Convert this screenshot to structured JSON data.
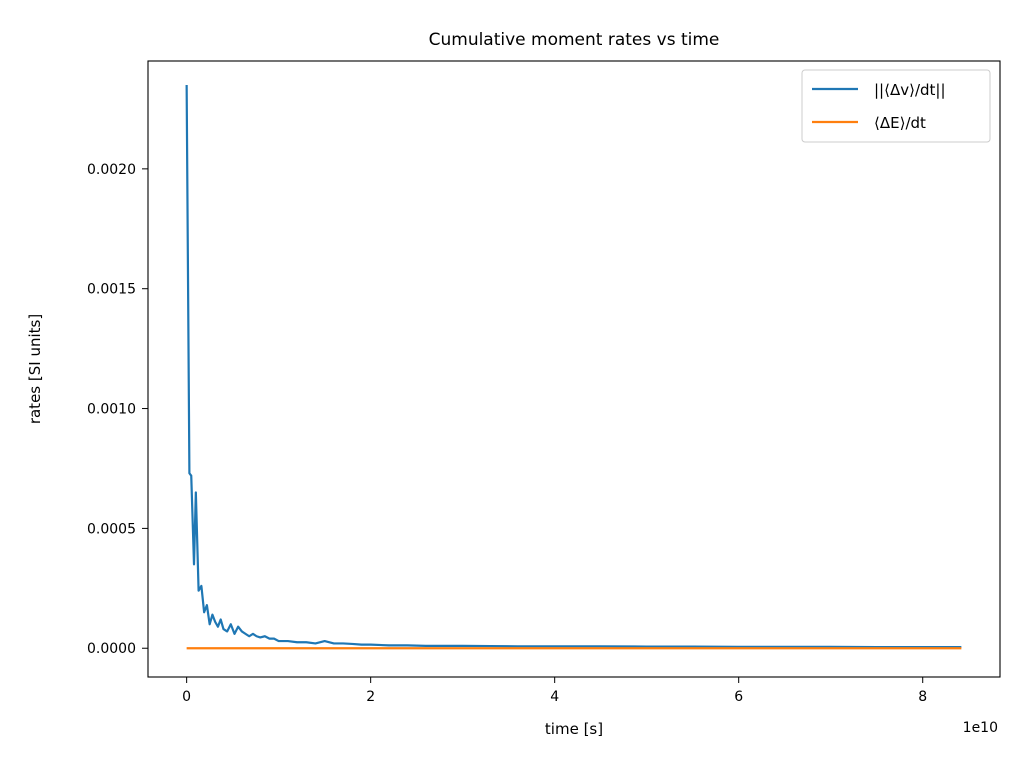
{
  "chart_data": {
    "type": "line",
    "title": "Cumulative moment rates vs time",
    "xlabel": "time [s]",
    "ylabel": "rates [SI units]",
    "x_offset_label": "1e10",
    "xlim": [
      -0.42,
      8.84
    ],
    "ylim": [
      -0.00012,
      0.00245
    ],
    "x_ticks": [
      0,
      2,
      4,
      6,
      8
    ],
    "x_tick_labels": [
      "0",
      "2",
      "4",
      "6",
      "8"
    ],
    "y_ticks": [
      0.0,
      0.0005,
      0.001,
      0.0015,
      0.002
    ],
    "y_tick_labels": [
      "0.0000",
      "0.0005",
      "0.0010",
      "0.0015",
      "0.0020"
    ],
    "grid": false,
    "legend_position": "top-right",
    "series": [
      {
        "name": "||⟨Δv⟩/dt||",
        "color": "#1f77b4",
        "x": [
          0.0,
          0.03,
          0.05,
          0.08,
          0.1,
          0.13,
          0.16,
          0.19,
          0.22,
          0.25,
          0.28,
          0.31,
          0.34,
          0.37,
          0.4,
          0.44,
          0.48,
          0.52,
          0.56,
          0.6,
          0.64,
          0.68,
          0.72,
          0.76,
          0.8,
          0.85,
          0.9,
          0.95,
          1.0,
          1.1,
          1.2,
          1.3,
          1.4,
          1.5,
          1.6,
          1.7,
          1.8,
          1.9,
          2.0,
          2.2,
          2.4,
          2.6,
          2.8,
          3.0,
          3.3,
          3.6,
          4.0,
          4.5,
          5.0,
          5.5,
          6.0,
          6.5,
          7.0,
          7.5,
          8.0,
          8.42
        ],
        "values": [
          0.00235,
          0.00073,
          0.00072,
          0.00035,
          0.00065,
          0.00024,
          0.00026,
          0.00015,
          0.00018,
          0.0001,
          0.00014,
          0.00011,
          9e-05,
          0.00012,
          8e-05,
          7e-05,
          0.0001,
          6e-05,
          9e-05,
          7e-05,
          6e-05,
          5e-05,
          6e-05,
          5e-05,
          4.5e-05,
          5e-05,
          4e-05,
          4e-05,
          3e-05,
          3e-05,
          2.5e-05,
          2.5e-05,
          2e-05,
          3e-05,
          2e-05,
          2e-05,
          1.8e-05,
          1.5e-05,
          1.5e-05,
          1.2e-05,
          1.2e-05,
          1e-05,
          1e-05,
          1e-05,
          9e-06,
          8e-06,
          8e-06,
          8e-06,
          7e-06,
          7e-06,
          6e-06,
          6e-06,
          6e-06,
          5e-06,
          5e-06,
          5e-06
        ]
      },
      {
        "name": "⟨ΔE⟩/dt",
        "color": "#ff7f0e",
        "x": [
          0.0,
          8.42
        ],
        "values": [
          0.0,
          0.0
        ]
      }
    ]
  }
}
